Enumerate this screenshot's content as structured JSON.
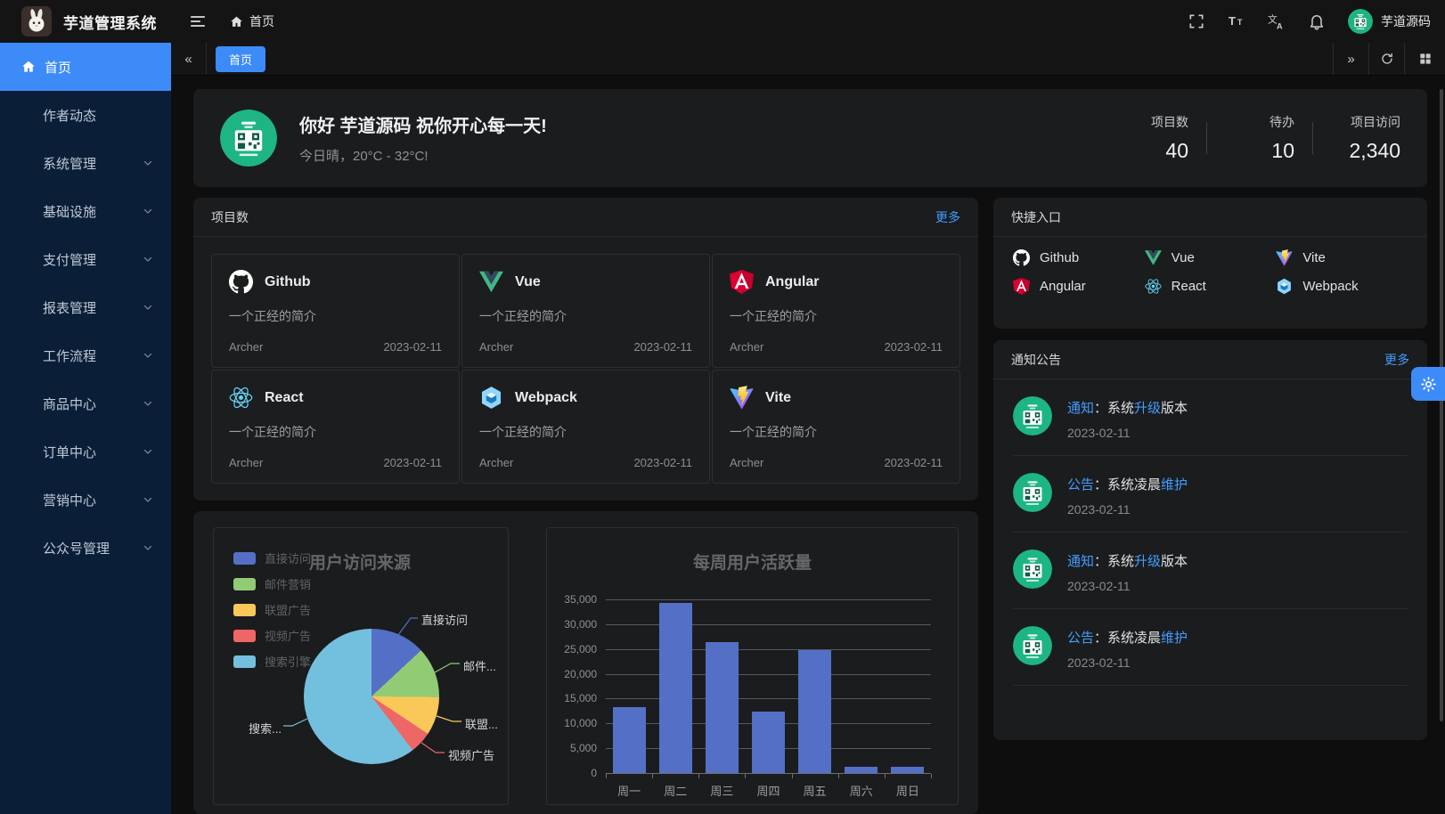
{
  "colors": {
    "accent": "#409eff",
    "sidebar_active": "#3d8bf8",
    "avatar_green": "#1db584",
    "bar_color": "#5470c6"
  },
  "topbar": {
    "app_title": "芋道管理系统",
    "breadcrumb_home": "首页",
    "username": "芋道源码"
  },
  "sidebar": {
    "items": [
      {
        "label": "首页",
        "icon": "home-icon",
        "active": true,
        "expandable": false
      },
      {
        "label": "作者动态",
        "active": false,
        "expandable": false
      },
      {
        "label": "系统管理",
        "active": false,
        "expandable": true
      },
      {
        "label": "基础设施",
        "active": false,
        "expandable": true
      },
      {
        "label": "支付管理",
        "active": false,
        "expandable": true
      },
      {
        "label": "报表管理",
        "active": false,
        "expandable": true
      },
      {
        "label": "工作流程",
        "active": false,
        "expandable": true
      },
      {
        "label": "商品中心",
        "active": false,
        "expandable": true
      },
      {
        "label": "订单中心",
        "active": false,
        "expandable": true
      },
      {
        "label": "营销中心",
        "active": false,
        "expandable": true
      },
      {
        "label": "公众号管理",
        "active": false,
        "expandable": true
      }
    ]
  },
  "tabbar": {
    "tabs": [
      {
        "label": "首页",
        "active": true
      }
    ]
  },
  "welcome": {
    "greeting": "你好 芋道源码 祝你开心每一天!",
    "weather": "今日晴，20°C - 32°C!",
    "stats": [
      {
        "label": "项目数",
        "value": "40"
      },
      {
        "label": "待办",
        "value": "10"
      },
      {
        "label": "项目访问",
        "value": "2,340"
      }
    ]
  },
  "projects_card": {
    "title": "项目数",
    "more_label": "更多",
    "items": [
      {
        "name": "Github",
        "icon": "github-icon",
        "desc": "一个正经的简介",
        "author": "Archer",
        "date": "2023-02-11"
      },
      {
        "name": "Vue",
        "icon": "vue-icon",
        "desc": "一个正经的简介",
        "author": "Archer",
        "date": "2023-02-11"
      },
      {
        "name": "Angular",
        "icon": "angular-icon",
        "desc": "一个正经的简介",
        "author": "Archer",
        "date": "2023-02-11"
      },
      {
        "name": "React",
        "icon": "react-icon",
        "desc": "一个正经的简介",
        "author": "Archer",
        "date": "2023-02-11"
      },
      {
        "name": "Webpack",
        "icon": "webpack-icon",
        "desc": "一个正经的简介",
        "author": "Archer",
        "date": "2023-02-11"
      },
      {
        "name": "Vite",
        "icon": "vite-icon",
        "desc": "一个正经的简介",
        "author": "Archer",
        "date": "2023-02-11"
      }
    ]
  },
  "shortcuts_card": {
    "title": "快捷入口",
    "items": [
      {
        "name": "Github",
        "icon": "github-icon"
      },
      {
        "name": "Vue",
        "icon": "vue-icon"
      },
      {
        "name": "Vite",
        "icon": "vite-icon"
      },
      {
        "name": "Angular",
        "icon": "angular-icon"
      },
      {
        "name": "React",
        "icon": "react-icon"
      },
      {
        "name": "Webpack",
        "icon": "webpack-icon"
      }
    ]
  },
  "notices_card": {
    "title": "通知公告",
    "more_label": "更多",
    "items": [
      {
        "parts": [
          {
            "text": "通知",
            "accent": true
          },
          {
            "text": "：系统",
            "accent": false
          },
          {
            "text": "升级",
            "accent": true
          },
          {
            "text": "版本",
            "accent": false
          }
        ],
        "date": "2023-02-11"
      },
      {
        "parts": [
          {
            "text": "公告",
            "accent": true
          },
          {
            "text": "：系统凌晨",
            "accent": false
          },
          {
            "text": "维护",
            "accent": true
          }
        ],
        "date": "2023-02-11"
      },
      {
        "parts": [
          {
            "text": "通知",
            "accent": true
          },
          {
            "text": "：系统",
            "accent": false
          },
          {
            "text": "升级",
            "accent": true
          },
          {
            "text": "版本",
            "accent": false
          }
        ],
        "date": "2023-02-11"
      },
      {
        "parts": [
          {
            "text": "公告",
            "accent": true
          },
          {
            "text": "：系统凌晨",
            "accent": false
          },
          {
            "text": "维护",
            "accent": true
          }
        ],
        "date": "2023-02-11"
      }
    ]
  },
  "chart_data": [
    {
      "type": "pie",
      "title": "用户访问来源",
      "legend_position": "left",
      "series": [
        {
          "name": "直接访问",
          "value": 335,
          "color": "#5470c6",
          "callout": "直接访问"
        },
        {
          "name": "邮件营销",
          "value": 310,
          "color": "#91cc75",
          "callout": "邮件..."
        },
        {
          "name": "联盟广告",
          "value": 234,
          "color": "#fac858",
          "callout": "联盟..."
        },
        {
          "name": "视频广告",
          "value": 135,
          "color": "#ee6666",
          "callout": "视频广告"
        },
        {
          "name": "搜索引擎",
          "value": 1548,
          "color": "#73c0de",
          "callout": "搜索..."
        }
      ]
    },
    {
      "type": "bar",
      "title": "每周用户活跃量",
      "categories": [
        "周一",
        "周二",
        "周三",
        "周四",
        "周五",
        "周六",
        "周日"
      ],
      "values": [
        13300,
        34300,
        26300,
        12400,
        24700,
        1300,
        1300
      ],
      "ylim": [
        0,
        35000
      ],
      "yticks": [
        "0",
        "5,000",
        "10,000",
        "15,000",
        "20,000",
        "25,000",
        "30,000",
        "35,000"
      ],
      "bar_color": "#5470c6",
      "grid": true,
      "legend_position": "none"
    }
  ]
}
